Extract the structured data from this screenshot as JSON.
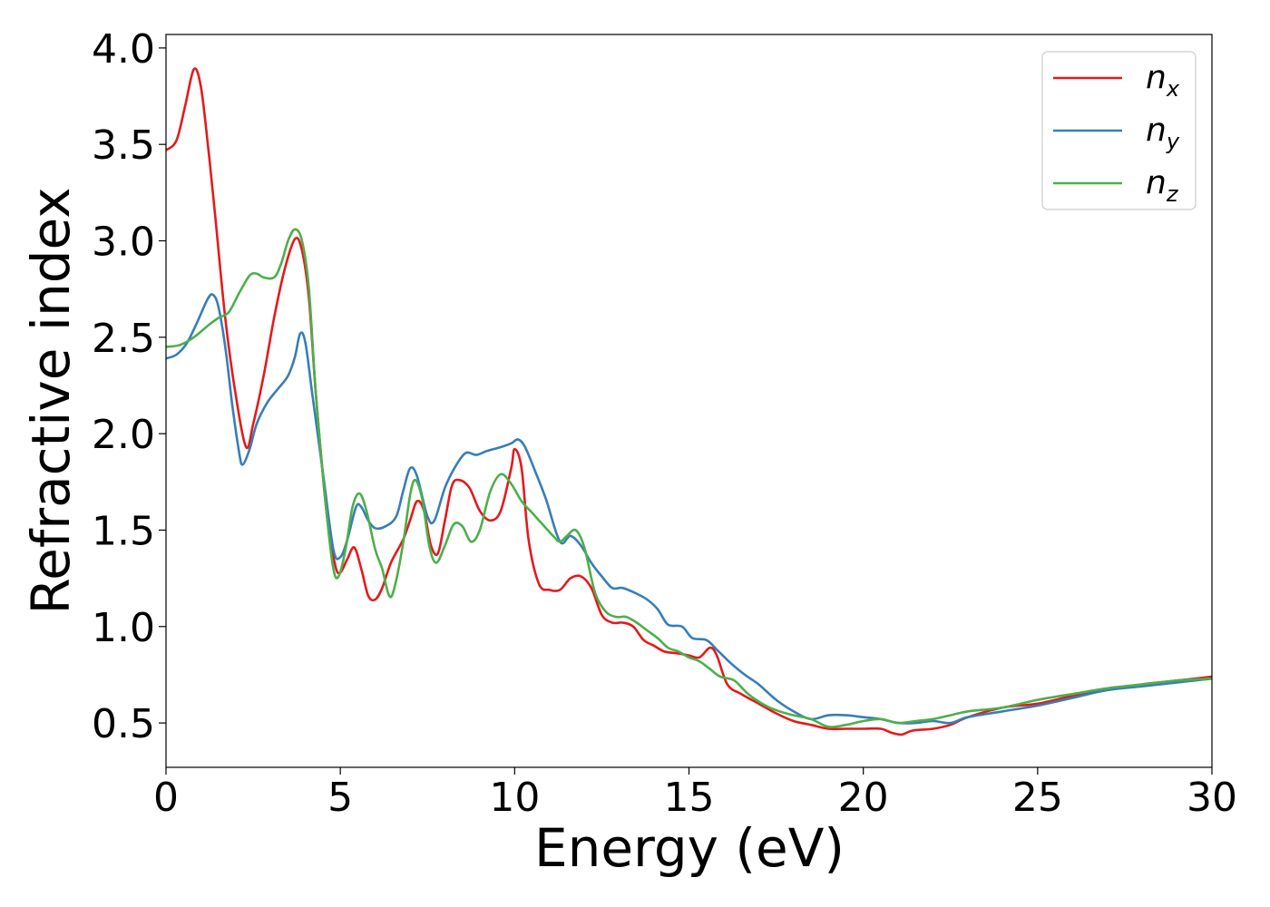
{
  "chart_data": {
    "type": "line",
    "title": "",
    "xlabel": "Energy (eV)",
    "ylabel": "Refractive index",
    "xlim": [
      0,
      30
    ],
    "ylim": [
      0.27,
      4.07
    ],
    "xticks": [
      0,
      5,
      10,
      15,
      20,
      25,
      30
    ],
    "xtick_labels": [
      "0",
      "5",
      "10",
      "15",
      "20",
      "25",
      "30"
    ],
    "yticks": [
      0.5,
      1.0,
      1.5,
      2.0,
      2.5,
      3.0,
      3.5,
      4.0
    ],
    "ytick_labels": [
      "0.5",
      "1.0",
      "1.5",
      "2.0",
      "2.5",
      "3.0",
      "3.5",
      "4.0"
    ],
    "grid": false,
    "legend_position": "top-right",
    "series": [
      {
        "name": "n_x",
        "legend_base": "n",
        "legend_sub": "x",
        "color": "#e41a1c",
        "points": [
          [
            0,
            3.47
          ],
          [
            0.3,
            3.52
          ],
          [
            0.55,
            3.7
          ],
          [
            0.8,
            3.89
          ],
          [
            1.0,
            3.8
          ],
          [
            1.2,
            3.5
          ],
          [
            1.4,
            3.15
          ],
          [
            1.7,
            2.6
          ],
          [
            2.0,
            2.2
          ],
          [
            2.3,
            1.93
          ],
          [
            2.5,
            2.05
          ],
          [
            2.8,
            2.3
          ],
          [
            3.1,
            2.6
          ],
          [
            3.4,
            2.85
          ],
          [
            3.7,
            3.01
          ],
          [
            3.9,
            2.95
          ],
          [
            4.1,
            2.7
          ],
          [
            4.3,
            2.2
          ],
          [
            4.6,
            1.6
          ],
          [
            4.85,
            1.32
          ],
          [
            5.0,
            1.28
          ],
          [
            5.2,
            1.35
          ],
          [
            5.4,
            1.41
          ],
          [
            5.6,
            1.3
          ],
          [
            5.8,
            1.16
          ],
          [
            6.0,
            1.14
          ],
          [
            6.2,
            1.2
          ],
          [
            6.45,
            1.33
          ],
          [
            6.8,
            1.45
          ],
          [
            7.0,
            1.55
          ],
          [
            7.2,
            1.65
          ],
          [
            7.4,
            1.6
          ],
          [
            7.6,
            1.42
          ],
          [
            7.8,
            1.38
          ],
          [
            8.0,
            1.55
          ],
          [
            8.2,
            1.73
          ],
          [
            8.4,
            1.76
          ],
          [
            8.7,
            1.72
          ],
          [
            9.0,
            1.6
          ],
          [
            9.3,
            1.55
          ],
          [
            9.6,
            1.6
          ],
          [
            9.9,
            1.82
          ],
          [
            10.0,
            1.92
          ],
          [
            10.2,
            1.82
          ],
          [
            10.4,
            1.45
          ],
          [
            10.7,
            1.22
          ],
          [
            11.0,
            1.19
          ],
          [
            11.3,
            1.19
          ],
          [
            11.6,
            1.25
          ],
          [
            11.9,
            1.26
          ],
          [
            12.2,
            1.2
          ],
          [
            12.5,
            1.06
          ],
          [
            12.8,
            1.02
          ],
          [
            13.1,
            1.02
          ],
          [
            13.4,
            1.0
          ],
          [
            13.7,
            0.93
          ],
          [
            14.0,
            0.9
          ],
          [
            14.3,
            0.87
          ],
          [
            14.7,
            0.86
          ],
          [
            15.0,
            0.85
          ],
          [
            15.3,
            0.84
          ],
          [
            15.6,
            0.89
          ],
          [
            15.8,
            0.85
          ],
          [
            16.1,
            0.7
          ],
          [
            16.5,
            0.65
          ],
          [
            17.0,
            0.6
          ],
          [
            17.5,
            0.55
          ],
          [
            18.0,
            0.51
          ],
          [
            18.5,
            0.49
          ],
          [
            19.0,
            0.47
          ],
          [
            19.5,
            0.47
          ],
          [
            20.0,
            0.47
          ],
          [
            20.5,
            0.47
          ],
          [
            20.8,
            0.45
          ],
          [
            21.1,
            0.44
          ],
          [
            21.4,
            0.46
          ],
          [
            22.0,
            0.47
          ],
          [
            22.5,
            0.49
          ],
          [
            23.0,
            0.53
          ],
          [
            24.0,
            0.58
          ],
          [
            25.0,
            0.6
          ],
          [
            26.0,
            0.64
          ],
          [
            27.0,
            0.67
          ],
          [
            28.0,
            0.7
          ],
          [
            29.0,
            0.72
          ],
          [
            30.0,
            0.74
          ]
        ]
      },
      {
        "name": "n_y",
        "legend_base": "n",
        "legend_sub": "y",
        "color": "#377eb8",
        "points": [
          [
            0,
            2.39
          ],
          [
            0.3,
            2.41
          ],
          [
            0.6,
            2.47
          ],
          [
            0.9,
            2.58
          ],
          [
            1.2,
            2.7
          ],
          [
            1.35,
            2.72
          ],
          [
            1.5,
            2.66
          ],
          [
            1.7,
            2.45
          ],
          [
            1.9,
            2.15
          ],
          [
            2.1,
            1.9
          ],
          [
            2.2,
            1.84
          ],
          [
            2.4,
            1.92
          ],
          [
            2.6,
            2.05
          ],
          [
            2.9,
            2.16
          ],
          [
            3.2,
            2.23
          ],
          [
            3.5,
            2.3
          ],
          [
            3.7,
            2.4
          ],
          [
            3.85,
            2.52
          ],
          [
            4.0,
            2.47
          ],
          [
            4.2,
            2.2
          ],
          [
            4.5,
            1.8
          ],
          [
            4.8,
            1.4
          ],
          [
            5.0,
            1.36
          ],
          [
            5.2,
            1.45
          ],
          [
            5.45,
            1.62
          ],
          [
            5.6,
            1.62
          ],
          [
            5.8,
            1.55
          ],
          [
            6.0,
            1.51
          ],
          [
            6.3,
            1.52
          ],
          [
            6.6,
            1.57
          ],
          [
            6.8,
            1.7
          ],
          [
            7.0,
            1.82
          ],
          [
            7.2,
            1.78
          ],
          [
            7.5,
            1.57
          ],
          [
            7.7,
            1.55
          ],
          [
            8.0,
            1.72
          ],
          [
            8.3,
            1.83
          ],
          [
            8.6,
            1.9
          ],
          [
            8.9,
            1.89
          ],
          [
            9.2,
            1.91
          ],
          [
            9.6,
            1.93
          ],
          [
            9.9,
            1.95
          ],
          [
            10.1,
            1.97
          ],
          [
            10.3,
            1.93
          ],
          [
            10.6,
            1.8
          ],
          [
            10.9,
            1.66
          ],
          [
            11.3,
            1.44
          ],
          [
            11.6,
            1.47
          ],
          [
            11.9,
            1.42
          ],
          [
            12.2,
            1.33
          ],
          [
            12.5,
            1.26
          ],
          [
            12.8,
            1.2
          ],
          [
            13.1,
            1.2
          ],
          [
            13.5,
            1.17
          ],
          [
            13.8,
            1.14
          ],
          [
            14.1,
            1.09
          ],
          [
            14.4,
            1.01
          ],
          [
            14.8,
            1.0
          ],
          [
            15.1,
            0.94
          ],
          [
            15.5,
            0.93
          ],
          [
            15.8,
            0.88
          ],
          [
            16.2,
            0.81
          ],
          [
            16.6,
            0.75
          ],
          [
            17.0,
            0.7
          ],
          [
            17.5,
            0.62
          ],
          [
            18.0,
            0.56
          ],
          [
            18.5,
            0.52
          ],
          [
            19.0,
            0.54
          ],
          [
            19.5,
            0.54
          ],
          [
            20.0,
            0.53
          ],
          [
            20.5,
            0.52
          ],
          [
            21.0,
            0.5
          ],
          [
            21.5,
            0.5
          ],
          [
            22.0,
            0.51
          ],
          [
            22.5,
            0.5
          ],
          [
            23.0,
            0.53
          ],
          [
            24.0,
            0.56
          ],
          [
            25.0,
            0.59
          ],
          [
            26.0,
            0.63
          ],
          [
            27.0,
            0.67
          ],
          [
            28.0,
            0.69
          ],
          [
            29.0,
            0.71
          ],
          [
            30.0,
            0.73
          ]
        ]
      },
      {
        "name": "n_z",
        "legend_base": "n",
        "legend_sub": "z",
        "color": "#4daf4a",
        "points": [
          [
            0,
            2.45
          ],
          [
            0.4,
            2.46
          ],
          [
            0.8,
            2.5
          ],
          [
            1.2,
            2.56
          ],
          [
            1.5,
            2.6
          ],
          [
            1.8,
            2.63
          ],
          [
            2.1,
            2.73
          ],
          [
            2.4,
            2.82
          ],
          [
            2.6,
            2.83
          ],
          [
            2.8,
            2.81
          ],
          [
            3.1,
            2.81
          ],
          [
            3.3,
            2.88
          ],
          [
            3.5,
            3.0
          ],
          [
            3.7,
            3.06
          ],
          [
            3.9,
            3.0
          ],
          [
            4.1,
            2.75
          ],
          [
            4.3,
            2.2
          ],
          [
            4.6,
            1.6
          ],
          [
            4.8,
            1.3
          ],
          [
            4.95,
            1.26
          ],
          [
            5.15,
            1.4
          ],
          [
            5.35,
            1.62
          ],
          [
            5.55,
            1.69
          ],
          [
            5.75,
            1.6
          ],
          [
            6.0,
            1.4
          ],
          [
            6.2,
            1.3
          ],
          [
            6.4,
            1.16
          ],
          [
            6.55,
            1.2
          ],
          [
            6.8,
            1.43
          ],
          [
            7.0,
            1.68
          ],
          [
            7.15,
            1.76
          ],
          [
            7.35,
            1.66
          ],
          [
            7.55,
            1.42
          ],
          [
            7.75,
            1.33
          ],
          [
            8.0,
            1.42
          ],
          [
            8.25,
            1.53
          ],
          [
            8.5,
            1.52
          ],
          [
            8.75,
            1.44
          ],
          [
            9.0,
            1.5
          ],
          [
            9.3,
            1.7
          ],
          [
            9.6,
            1.79
          ],
          [
            9.9,
            1.74
          ],
          [
            10.2,
            1.65
          ],
          [
            10.5,
            1.59
          ],
          [
            10.8,
            1.53
          ],
          [
            11.1,
            1.47
          ],
          [
            11.3,
            1.44
          ],
          [
            11.5,
            1.47
          ],
          [
            11.75,
            1.5
          ],
          [
            12.0,
            1.41
          ],
          [
            12.3,
            1.18
          ],
          [
            12.6,
            1.08
          ],
          [
            12.9,
            1.05
          ],
          [
            13.2,
            1.05
          ],
          [
            13.5,
            1.02
          ],
          [
            13.8,
            0.98
          ],
          [
            14.1,
            0.94
          ],
          [
            14.4,
            0.89
          ],
          [
            14.7,
            0.87
          ],
          [
            15.0,
            0.84
          ],
          [
            15.3,
            0.82
          ],
          [
            15.6,
            0.78
          ],
          [
            15.9,
            0.74
          ],
          [
            16.3,
            0.72
          ],
          [
            16.7,
            0.65
          ],
          [
            17.2,
            0.59
          ],
          [
            17.6,
            0.56
          ],
          [
            18.0,
            0.54
          ],
          [
            18.5,
            0.52
          ],
          [
            19.0,
            0.48
          ],
          [
            19.5,
            0.49
          ],
          [
            20.0,
            0.51
          ],
          [
            20.5,
            0.52
          ],
          [
            21.0,
            0.5
          ],
          [
            21.5,
            0.51
          ],
          [
            22.0,
            0.52
          ],
          [
            22.5,
            0.54
          ],
          [
            23.0,
            0.56
          ],
          [
            24.0,
            0.58
          ],
          [
            25.0,
            0.62
          ],
          [
            26.0,
            0.65
          ],
          [
            27.0,
            0.68
          ],
          [
            28.0,
            0.7
          ],
          [
            29.0,
            0.72
          ],
          [
            30.0,
            0.73
          ]
        ]
      }
    ]
  }
}
